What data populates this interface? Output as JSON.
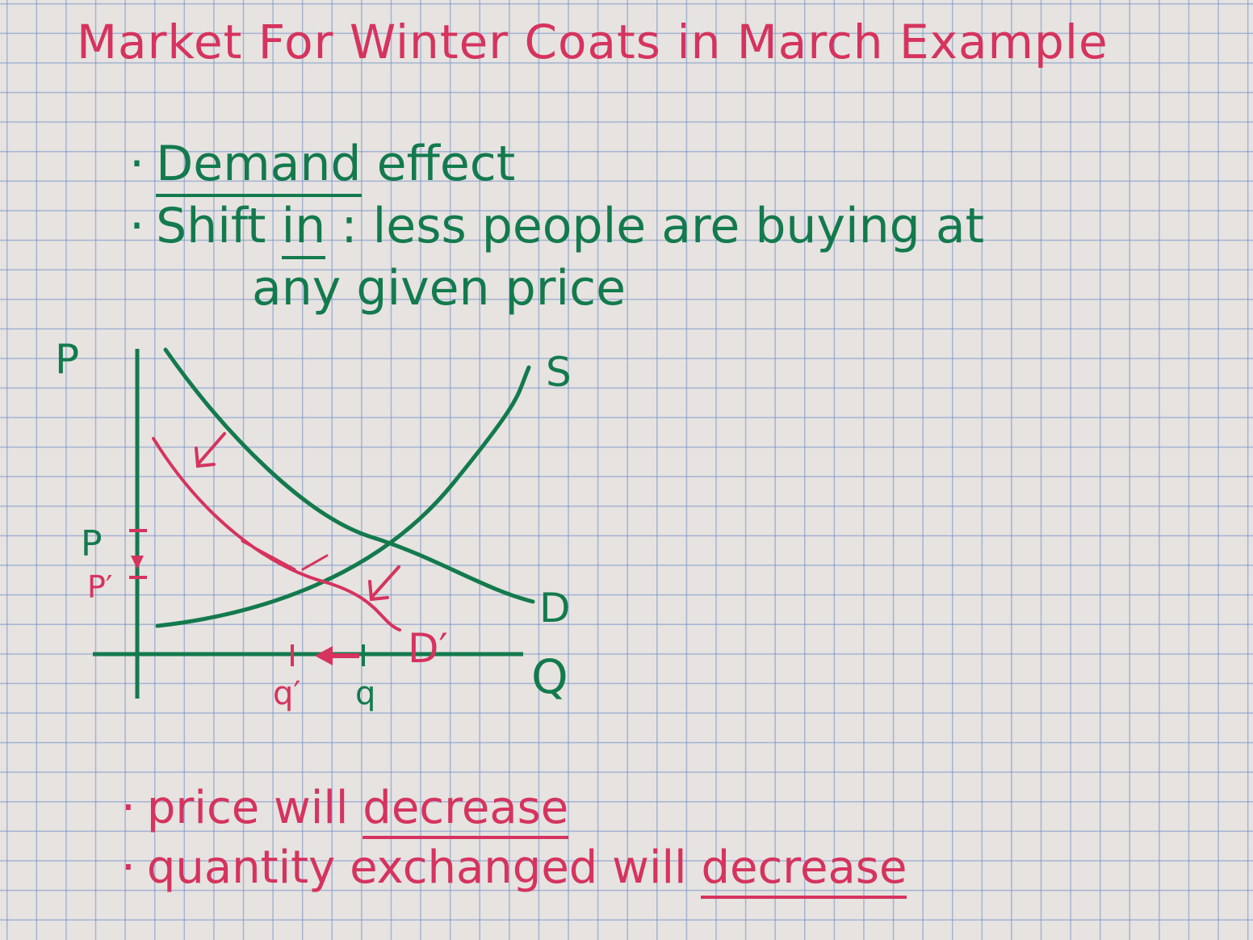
{
  "title": "Market For Winter Coats in March Example",
  "bullets": {
    "demand_heading": "Demand",
    "demand_effect": "effect",
    "shift_prefix": "Shift",
    "shift_in": "in",
    "shift_rest": ": less people are buying at",
    "shift_cont": "any given price",
    "price_text": "price will",
    "price_decrease": "decrease",
    "qty_text": "quantity exchanged will",
    "qty_decrease": "decrease"
  },
  "graph": {
    "y_axis": "P",
    "x_axis": "Q",
    "supply": "S",
    "demand": "D",
    "demand_new": "D′",
    "price": "P",
    "price_new": "P′",
    "quantity": "q",
    "quantity_new": "q′"
  },
  "colors": {
    "green": "#137a4d",
    "red": "#d6335e"
  }
}
